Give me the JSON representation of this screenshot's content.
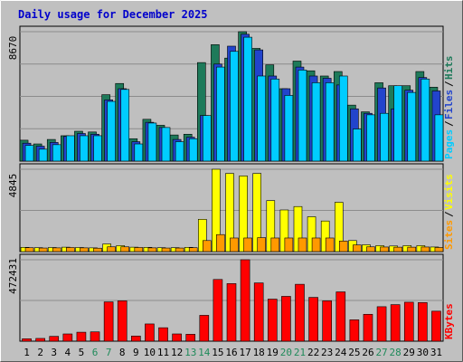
{
  "chart_data": {
    "type": "bar",
    "title": "Daily usage for December 2025",
    "categories": [
      "1",
      "2",
      "3",
      "4",
      "5",
      "6",
      "7",
      "8",
      "9",
      "10",
      "11",
      "12",
      "13",
      "14",
      "15",
      "16",
      "17",
      "18",
      "19",
      "20",
      "21",
      "22",
      "23",
      "24",
      "25",
      "26",
      "27",
      "28",
      "29",
      "30",
      "31"
    ],
    "weekend_days": [
      "6",
      "7",
      "13",
      "14",
      "20",
      "21",
      "27",
      "28"
    ],
    "panels": [
      {
        "id": "pages-files-hits",
        "type": "bar",
        "max_label": "8670",
        "ylim": [
          0,
          8670
        ],
        "legend": [
          "Pages",
          "/",
          "Files",
          "/",
          "Hits"
        ],
        "series": [
          {
            "name": "Hits",
            "color": "#1e7a5a",
            "values": [
              1400,
              1150,
              1450,
              1700,
              2000,
              1950,
              4450,
              5200,
              1500,
              2800,
              2400,
              1750,
              1800,
              6600,
              7800,
              6900,
              8670,
              7550,
              6450,
              4850,
              6700,
              6050,
              5700,
              6000,
              3750,
              3300,
              5250,
              5050,
              5050,
              6000,
              4950
            ]
          },
          {
            "name": "Files",
            "color": "#2244cc",
            "values": [
              1200,
              1000,
              1250,
              1650,
              1850,
              1800,
              4100,
              4850,
              1300,
              2600,
              2250,
              1450,
              1600,
              3050,
              6500,
              7700,
              8500,
              7450,
              5700,
              4850,
              6300,
              5700,
              5550,
              5100,
              3500,
              3200,
              4900,
              3500,
              4750,
              5600,
              4700
            ]
          },
          {
            "name": "Pages",
            "color": "#00ccff",
            "values": [
              1050,
              800,
              1100,
              1700,
              1700,
              1700,
              4000,
              4800,
              1150,
              2550,
              2250,
              1300,
              1500,
              3050,
              6300,
              7350,
              8300,
              5700,
              5500,
              4400,
              6100,
              5250,
              5250,
              5700,
              2150,
              3100,
              3200,
              5050,
              4600,
              5500,
              3100
            ]
          }
        ]
      },
      {
        "id": "sites-visits",
        "type": "bar",
        "max_label": "4845",
        "ylim": [
          0,
          4845
        ],
        "legend": [
          "Sites",
          "/",
          "Visits"
        ],
        "series": [
          {
            "name": "Visits",
            "color": "#ffff00",
            "values": [
              250,
              230,
              240,
              260,
              240,
              220,
              450,
              350,
              260,
              250,
              230,
              230,
              250,
              1900,
              4845,
              4600,
              4450,
              4600,
              3000,
              2450,
              2650,
              2050,
              1800,
              2900,
              650,
              400,
              350,
              330,
              350,
              350,
              270
            ]
          },
          {
            "name": "Sites",
            "color": "#ff9900",
            "values": [
              230,
              210,
              220,
              240,
              220,
              200,
              280,
              280,
              240,
              220,
              210,
              210,
              230,
              650,
              1000,
              800,
              800,
              820,
              800,
              800,
              800,
              800,
              800,
              620,
              390,
              280,
              270,
              260,
              260,
              270,
              240
            ]
          }
        ]
      },
      {
        "id": "kbytes",
        "type": "bar",
        "max_label": "472431",
        "ylim": [
          0,
          472431
        ],
        "legend": [
          "KBytes"
        ],
        "series": [
          {
            "name": "KBytes",
            "color": "#ff0000",
            "values": [
              14000,
              16000,
              28000,
              42000,
              52000,
              54000,
              228000,
              234000,
              30000,
              100000,
              78000,
              42000,
              40000,
              150000,
              358000,
              334000,
              472431,
              338000,
              244000,
              260000,
              330000,
              254000,
              234000,
              286000,
              124000,
              156000,
              200000,
              212000,
              226000,
              224000,
              174000
            ]
          }
        ]
      }
    ],
    "colors": {
      "background": "#ffffff",
      "frame": "#c0c0c0",
      "plot": "#bfbfbf",
      "title": "#0000cc",
      "grid": "#8c8c8c",
      "weekday_label": "#000000",
      "weekend_label": "#1f8a5a"
    }
  }
}
